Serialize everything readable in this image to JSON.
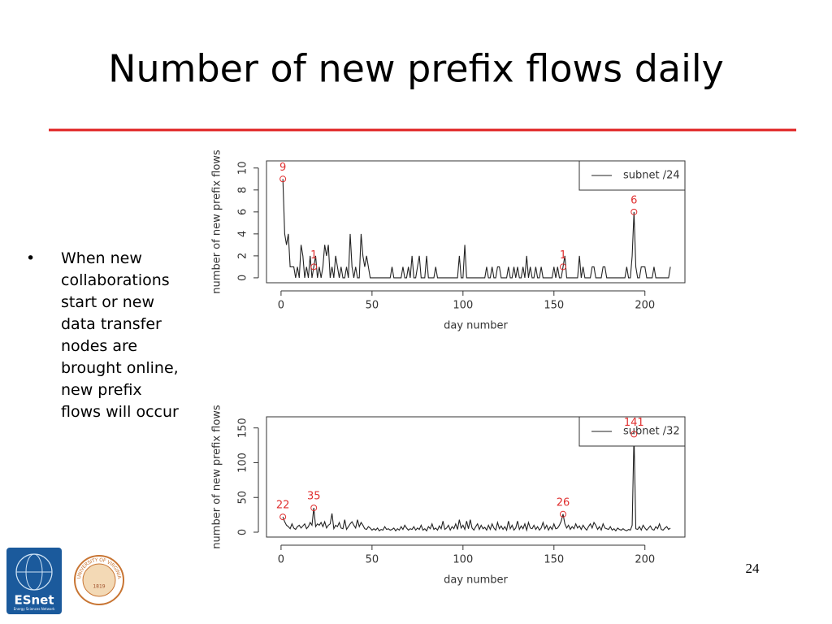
{
  "title": "Number of new prefix flows daily",
  "bullet": "When new collaborations start or new data transfer nodes are brought online, new prefix flows will occur",
  "page_number": "24",
  "logos": {
    "esnet": "ESnet",
    "esnet_sub": "Energy Sciences Network",
    "uva": "UNIVERSITY OF VIRGINIA",
    "uva_year": "1819"
  },
  "chart_data": [
    {
      "type": "line",
      "xlabel": "day number",
      "ylabel": "number of new prefix flows",
      "xlim": [
        -8,
        222
      ],
      "ylim": [
        -0.45,
        10.65
      ],
      "xticks": [
        0,
        50,
        100,
        150,
        200
      ],
      "yticks": [
        0,
        2,
        4,
        6,
        8,
        10
      ],
      "legend": "topright",
      "x": [
        1,
        2,
        3,
        4,
        5,
        6,
        7,
        8,
        9,
        10,
        11,
        12,
        13,
        14,
        15,
        16,
        17,
        18,
        19,
        20,
        21,
        22,
        23,
        24,
        25,
        26,
        27,
        28,
        29,
        30,
        31,
        32,
        33,
        34,
        35,
        36,
        37,
        38,
        39,
        40,
        41,
        42,
        43,
        44,
        45,
        46,
        47,
        48,
        49,
        50,
        51,
        52,
        53,
        54,
        55,
        56,
        57,
        58,
        59,
        60,
        61,
        62,
        63,
        64,
        65,
        66,
        67,
        68,
        69,
        70,
        71,
        72,
        73,
        74,
        75,
        76,
        77,
        78,
        79,
        80,
        81,
        82,
        83,
        84,
        85,
        86,
        87,
        88,
        89,
        90,
        91,
        92,
        93,
        94,
        95,
        96,
        97,
        98,
        99,
        100,
        101,
        102,
        103,
        104,
        105,
        106,
        107,
        108,
        109,
        110,
        111,
        112,
        113,
        114,
        115,
        116,
        117,
        118,
        119,
        120,
        121,
        122,
        123,
        124,
        125,
        126,
        127,
        128,
        129,
        130,
        131,
        132,
        133,
        134,
        135,
        136,
        137,
        138,
        139,
        140,
        141,
        142,
        143,
        144,
        145,
        146,
        147,
        148,
        149,
        150,
        151,
        152,
        153,
        154,
        155,
        156,
        157,
        158,
        159,
        160,
        161,
        162,
        163,
        164,
        165,
        166,
        167,
        168,
        169,
        170,
        171,
        172,
        173,
        174,
        175,
        176,
        177,
        178,
        179,
        180,
        181,
        182,
        183,
        184,
        185,
        186,
        187,
        188,
        189,
        190,
        191,
        192,
        193,
        194,
        195,
        196,
        197,
        198,
        199,
        200,
        201,
        202,
        203,
        204,
        205,
        206,
        207,
        208,
        209,
        210,
        211,
        212,
        213,
        214
      ],
      "series": [
        {
          "name": "subnet /24",
          "color": "#222222",
          "values": [
            9,
            4,
            3,
            4,
            1,
            1,
            1,
            0,
            1,
            0,
            3,
            2,
            0,
            1,
            0,
            2,
            0,
            1,
            2,
            0,
            1,
            0,
            1,
            3,
            2,
            3,
            0,
            1,
            0,
            2,
            1,
            0,
            1,
            0,
            0,
            1,
            0,
            4,
            1,
            0,
            1,
            0,
            0,
            4,
            2,
            1,
            2,
            1,
            0,
            0,
            0,
            0,
            0,
            0,
            0,
            0,
            0,
            0,
            0,
            0,
            1,
            0,
            0,
            0,
            0,
            0,
            1,
            0,
            0,
            1,
            0,
            2,
            0,
            0,
            1,
            2,
            0,
            0,
            0,
            2,
            0,
            0,
            0,
            0,
            1,
            0,
            0,
            0,
            0,
            0,
            0,
            0,
            0,
            0,
            0,
            0,
            0,
            2,
            0,
            0,
            3,
            0,
            0,
            0,
            0,
            0,
            0,
            0,
            0,
            0,
            0,
            0,
            1,
            0,
            0,
            1,
            0,
            0,
            1,
            1,
            0,
            0,
            0,
            0,
            1,
            0,
            0,
            1,
            0,
            1,
            0,
            0,
            1,
            0,
            2,
            0,
            1,
            0,
            0,
            1,
            0,
            0,
            1,
            0,
            0,
            0,
            0,
            0,
            0,
            1,
            0,
            1,
            0,
            0,
            1,
            2,
            0,
            0,
            0,
            0,
            0,
            0,
            0,
            2,
            0,
            1,
            0,
            0,
            0,
            0,
            1,
            1,
            0,
            0,
            0,
            0,
            1,
            1,
            0,
            0,
            0,
            0,
            0,
            0,
            0,
            0,
            0,
            0,
            0,
            1,
            0,
            0,
            2,
            6,
            1,
            0,
            0,
            1,
            1,
            1,
            0,
            0,
            0,
            0,
            1,
            0,
            0,
            0,
            0,
            0,
            0,
            0,
            0,
            1
          ]
        }
      ],
      "annotations": [
        {
          "x": 1,
          "y": 9
        },
        {
          "x": 18,
          "y": 1
        },
        {
          "x": 155,
          "y": 1
        },
        {
          "x": 194,
          "y": 6
        }
      ],
      "annotation_color": "#e03030"
    },
    {
      "type": "line",
      "xlabel": "day number",
      "ylabel": "number of new prefix flows",
      "xlim": [
        -8,
        222
      ],
      "ylim": [
        -7,
        166
      ],
      "xticks": [
        0,
        50,
        100,
        150,
        200
      ],
      "yticks": [
        0,
        50,
        100,
        150
      ],
      "legend": "topright",
      "x": [
        1,
        2,
        3,
        4,
        5,
        6,
        7,
        8,
        9,
        10,
        11,
        12,
        13,
        14,
        15,
        16,
        17,
        18,
        19,
        20,
        21,
        22,
        23,
        24,
        25,
        26,
        27,
        28,
        29,
        30,
        31,
        32,
        33,
        34,
        35,
        36,
        37,
        38,
        39,
        40,
        41,
        42,
        43,
        44,
        45,
        46,
        47,
        48,
        49,
        50,
        51,
        52,
        53,
        54,
        55,
        56,
        57,
        58,
        59,
        60,
        61,
        62,
        63,
        64,
        65,
        66,
        67,
        68,
        69,
        70,
        71,
        72,
        73,
        74,
        75,
        76,
        77,
        78,
        79,
        80,
        81,
        82,
        83,
        84,
        85,
        86,
        87,
        88,
        89,
        90,
        91,
        92,
        93,
        94,
        95,
        96,
        97,
        98,
        99,
        100,
        101,
        102,
        103,
        104,
        105,
        106,
        107,
        108,
        109,
        110,
        111,
        112,
        113,
        114,
        115,
        116,
        117,
        118,
        119,
        120,
        121,
        122,
        123,
        124,
        125,
        126,
        127,
        128,
        129,
        130,
        131,
        132,
        133,
        134,
        135,
        136,
        137,
        138,
        139,
        140,
        141,
        142,
        143,
        144,
        145,
        146,
        147,
        148,
        149,
        150,
        151,
        152,
        153,
        154,
        155,
        156,
        157,
        158,
        159,
        160,
        161,
        162,
        163,
        164,
        165,
        166,
        167,
        168,
        169,
        170,
        171,
        172,
        173,
        174,
        175,
        176,
        177,
        178,
        179,
        180,
        181,
        182,
        183,
        184,
        185,
        186,
        187,
        188,
        189,
        190,
        191,
        192,
        193,
        194,
        195,
        196,
        197,
        198,
        199,
        200,
        201,
        202,
        203,
        204,
        205,
        206,
        207,
        208,
        209,
        210,
        211,
        212,
        213,
        214
      ],
      "series": [
        {
          "name": "subnet /32",
          "color": "#222222",
          "values": [
            22,
            15,
            10,
            8,
            5,
            12,
            6,
            4,
            8,
            10,
            6,
            9,
            12,
            5,
            8,
            14,
            10,
            35,
            8,
            12,
            10,
            14,
            8,
            15,
            6,
            10,
            12,
            27,
            5,
            10,
            8,
            14,
            6,
            5,
            18,
            4,
            8,
            12,
            15,
            10,
            6,
            18,
            8,
            14,
            10,
            5,
            4,
            8,
            6,
            3,
            5,
            3,
            6,
            2,
            4,
            3,
            8,
            4,
            5,
            3,
            4,
            6,
            2,
            5,
            3,
            8,
            4,
            10,
            6,
            3,
            5,
            4,
            8,
            3,
            6,
            4,
            10,
            3,
            5,
            2,
            8,
            5,
            12,
            4,
            6,
            3,
            9,
            5,
            16,
            4,
            6,
            10,
            3,
            8,
            5,
            12,
            4,
            18,
            6,
            10,
            4,
            16,
            5,
            18,
            6,
            3,
            8,
            12,
            4,
            10,
            5,
            7,
            3,
            10,
            4,
            12,
            6,
            3,
            14,
            5,
            9,
            4,
            8,
            3,
            16,
            5,
            10,
            3,
            6,
            16,
            4,
            9,
            5,
            12,
            3,
            14,
            6,
            5,
            10,
            4,
            8,
            3,
            6,
            14,
            5,
            10,
            3,
            8,
            4,
            12,
            5,
            6,
            10,
            16,
            26,
            12,
            6,
            10,
            4,
            8,
            5,
            12,
            6,
            9,
            4,
            10,
            6,
            3,
            8,
            12,
            6,
            14,
            10,
            4,
            8,
            3,
            12,
            6,
            5,
            4,
            8,
            3,
            5,
            2,
            6,
            4,
            3,
            5,
            3,
            2,
            4,
            3,
            10,
            141,
            5,
            4,
            8,
            3,
            10,
            6,
            3,
            6,
            9,
            4,
            3,
            8,
            5,
            12,
            4,
            3,
            6,
            8,
            4,
            6
          ]
        }
      ],
      "annotations": [
        {
          "x": 1,
          "y": 22
        },
        {
          "x": 18,
          "y": 35
        },
        {
          "x": 155,
          "y": 26
        },
        {
          "x": 194,
          "y": 141
        }
      ],
      "annotation_color": "#e03030"
    }
  ]
}
